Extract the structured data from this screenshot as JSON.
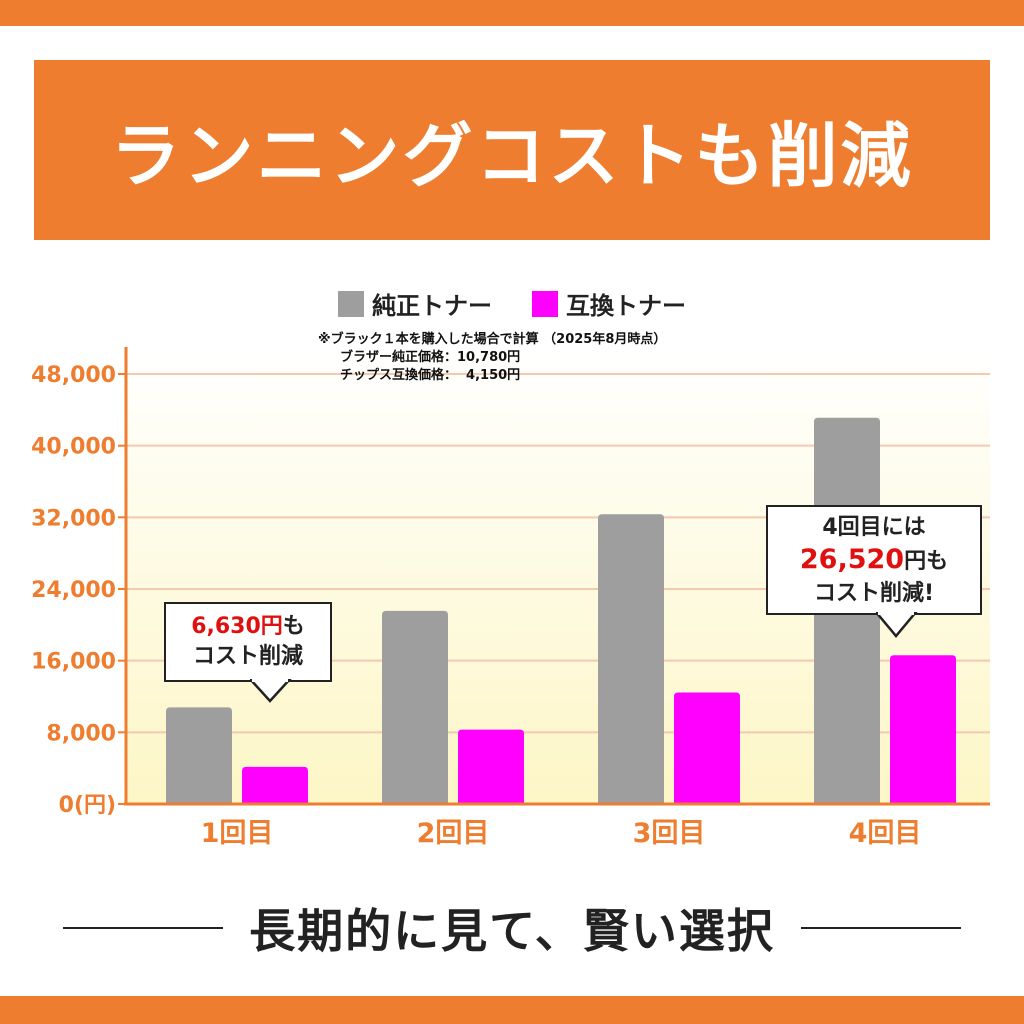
{
  "title": "ランニングコストも削減",
  "legend": {
    "genuine": "純正トナー",
    "compatible": "互換トナー"
  },
  "notes": {
    "line1": "※ブラック１本を購入した場合で計算 （2025年8月時点）",
    "line2": "ブラザー純正価格：10,780円",
    "line3": "チップス互換価格：  4,150円"
  },
  "callout1": {
    "amount": "6,630円",
    "suffix": "も",
    "line2": "コスト削減"
  },
  "callout2": {
    "line1": "4回目には",
    "amount": "26,520",
    "unit": "円も",
    "line3": "コスト削減!"
  },
  "footer": "長期的に見て、賢い選択",
  "colors": {
    "accent": "#ee7d30",
    "genuine": "#9e9e9e",
    "compatible": "#ff00ff",
    "highlight": "#e01010"
  },
  "chart_data": {
    "type": "bar",
    "categories": [
      "1回目",
      "2回目",
      "3回目",
      "4回目"
    ],
    "series": [
      {
        "name": "純正トナー",
        "values": [
          10780,
          21560,
          32340,
          43120
        ]
      },
      {
        "name": "互換トナー",
        "values": [
          4150,
          8300,
          12450,
          16600
        ]
      }
    ],
    "y_ticks": [
      "0(円)",
      "8,000",
      "16,000",
      "24,000",
      "32,000",
      "40,000",
      "48,000"
    ],
    "ylim": [
      0,
      48000
    ],
    "grid": true,
    "legend_position": "top-center"
  }
}
